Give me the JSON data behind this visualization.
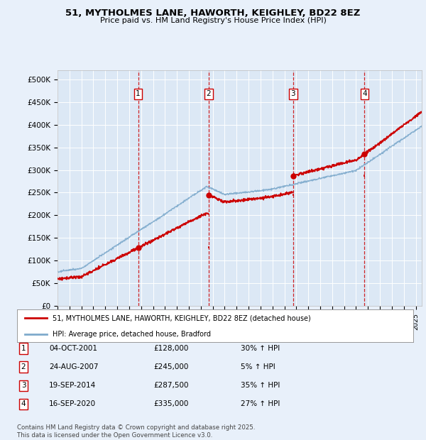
{
  "title": "51, MYTHOLMES LANE, HAWORTH, KEIGHLEY, BD22 8EZ",
  "subtitle": "Price paid vs. HM Land Registry's House Price Index (HPI)",
  "ylim": [
    0,
    520000
  ],
  "yticks": [
    0,
    50000,
    100000,
    150000,
    200000,
    250000,
    300000,
    350000,
    400000,
    450000,
    500000
  ],
  "ytick_labels": [
    "£0",
    "£50K",
    "£100K",
    "£150K",
    "£200K",
    "£250K",
    "£300K",
    "£350K",
    "£400K",
    "£450K",
    "£500K"
  ],
  "background_color": "#e8f0fa",
  "plot_bg_color": "#dce8f5",
  "grid_color": "#ffffff",
  "red_line_color": "#cc0000",
  "blue_line_color": "#7eaacc",
  "vline_color": "#cc0000",
  "sale_dates": [
    2001.75,
    2007.65,
    2014.72,
    2020.71
  ],
  "sale_prices": [
    128000,
    245000,
    287500,
    335000
  ],
  "transactions": [
    {
      "label": "1",
      "date": "04-OCT-2001",
      "price": "£128,000",
      "change": "30% ↑ HPI"
    },
    {
      "label": "2",
      "date": "24-AUG-2007",
      "price": "£245,000",
      "change": "5% ↑ HPI"
    },
    {
      "label": "3",
      "date": "19-SEP-2014",
      "price": "£287,500",
      "change": "35% ↑ HPI"
    },
    {
      "label": "4",
      "date": "16-SEP-2020",
      "price": "£335,000",
      "change": "27% ↑ HPI"
    }
  ],
  "legend_entries": [
    "51, MYTHOLMES LANE, HAWORTH, KEIGHLEY, BD22 8EZ (detached house)",
    "HPI: Average price, detached house, Bradford"
  ],
  "footer": "Contains HM Land Registry data © Crown copyright and database right 2025.\nThis data is licensed under the Open Government Licence v3.0.",
  "xmin": 1995.0,
  "xmax": 2025.5
}
